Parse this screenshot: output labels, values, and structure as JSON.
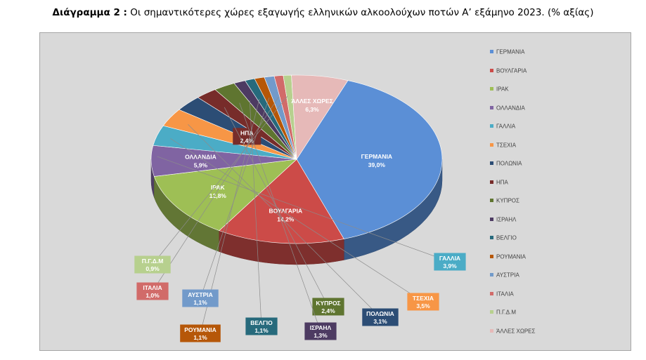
{
  "title_bold": "Διάγραμμα 2 :",
  "title_rest": " Οι σημαντικότερες χώρες εξαγωγής ελληνικών αλκοολούχων ποτών Α’ εξάμηνο 2023. (% αξίας)",
  "chart_data": {
    "type": "pie",
    "categories": [
      "ΓΕΡΜΑΝΙΑ",
      "ΒΟΥΛΓΑΡΙΑ",
      "ΙΡΑΚ",
      "ΟΛΛΑΝΔΙΑ",
      "ΓΑΛΛΙΑ",
      "ΤΣΕΧΙΑ",
      "ΠΟΛΩΝΙΑ",
      "ΗΠΑ",
      "ΚΥΠΡΟΣ",
      "ΙΣΡΑΗΛ",
      "ΒΕΛΓΙΟ",
      "ΡΟΥΜΑΝΙΑ",
      "ΑΥΣΤΡΙΑ",
      "ΙΤΑΛΙΑ",
      "Π.Γ.Δ.Μ",
      "ΆΛΛΕΣ ΧΩΡΕΣ"
    ],
    "values": [
      39.0,
      14.2,
      12.8,
      5.9,
      3.9,
      3.5,
      3.1,
      2.4,
      2.4,
      1.3,
      1.1,
      1.1,
      1.1,
      1.0,
      0.9,
      6.3
    ],
    "value_labels": [
      "39,0%",
      "14,2%",
      "12,8%",
      "5,9%",
      "3,9%",
      "3,5%",
      "3,1%",
      "2,4%",
      "2,4%",
      "1,3%",
      "1,1%",
      "1,1%",
      "1,1%",
      "1,0%",
      "0,9%",
      "6,3%"
    ],
    "colors": [
      "#5b8fd6",
      "#cc4b48",
      "#9ebf55",
      "#8064a2",
      "#4bacc6",
      "#f79646",
      "#2c4d75",
      "#772c2a",
      "#5f7530",
      "#4d3b62",
      "#276a7c",
      "#b65708",
      "#729aca",
      "#d16b69",
      "#b7d08e",
      "#e6b9b8"
    ],
    "legend_position": "right",
    "title": "",
    "xlabel": "",
    "ylabel": ""
  }
}
